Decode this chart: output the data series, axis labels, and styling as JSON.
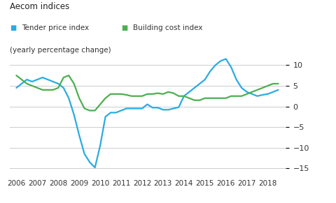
{
  "title": "Aecom indices",
  "legend_line1": "Tender price index",
  "legend_line2": "Building cost index",
  "subtitle": "(yearly percentage change)",
  "legend_colors": [
    "#29ABE2",
    "#4CAF50"
  ],
  "background_color": "#FFFFFF",
  "grid_color": "#CCCCCC",
  "ylim": [
    -16.5,
    12
  ],
  "yticks": [
    -15,
    -10,
    -5,
    0,
    5,
    10
  ],
  "xlim": [
    2005.7,
    2018.85
  ],
  "xticks": [
    2006,
    2007,
    2008,
    2009,
    2010,
    2011,
    2012,
    2013,
    2014,
    2015,
    2016,
    2017,
    2018
  ],
  "tender_price_index": {
    "x": [
      2006.0,
      2006.25,
      2006.5,
      2006.75,
      2007.0,
      2007.25,
      2007.5,
      2007.75,
      2008.0,
      2008.25,
      2008.5,
      2008.75,
      2009.0,
      2009.25,
      2009.5,
      2009.75,
      2010.0,
      2010.25,
      2010.5,
      2010.75,
      2011.0,
      2011.25,
      2011.5,
      2011.75,
      2012.0,
      2012.25,
      2012.5,
      2012.75,
      2013.0,
      2013.25,
      2013.5,
      2013.75,
      2014.0,
      2014.25,
      2014.5,
      2014.75,
      2015.0,
      2015.25,
      2015.5,
      2015.75,
      2016.0,
      2016.25,
      2016.5,
      2016.75,
      2017.0,
      2017.25,
      2017.5,
      2017.75,
      2018.0,
      2018.25,
      2018.5
    ],
    "y": [
      4.5,
      5.5,
      6.5,
      6.0,
      6.5,
      7.0,
      6.5,
      6.0,
      5.5,
      4.5,
      2.0,
      -2.0,
      -7.0,
      -11.5,
      -13.5,
      -14.8,
      -9.5,
      -2.5,
      -1.5,
      -1.5,
      -1.0,
      -0.5,
      -0.5,
      -0.5,
      -0.5,
      0.5,
      -0.3,
      -0.3,
      -0.8,
      -0.8,
      -0.5,
      -0.2,
      2.5,
      3.5,
      4.5,
      5.5,
      6.5,
      8.5,
      10.0,
      11.0,
      11.5,
      9.5,
      6.5,
      4.5,
      3.5,
      3.0,
      2.5,
      2.8,
      3.0,
      3.5,
      4.0
    ]
  },
  "building_cost_index": {
    "x": [
      2006.0,
      2006.25,
      2006.5,
      2006.75,
      2007.0,
      2007.25,
      2007.5,
      2007.75,
      2008.0,
      2008.25,
      2008.5,
      2008.75,
      2009.0,
      2009.25,
      2009.5,
      2009.75,
      2010.0,
      2010.25,
      2010.5,
      2010.75,
      2011.0,
      2011.25,
      2011.5,
      2011.75,
      2012.0,
      2012.25,
      2012.5,
      2012.75,
      2013.0,
      2013.25,
      2013.5,
      2013.75,
      2014.0,
      2014.25,
      2014.5,
      2014.75,
      2015.0,
      2015.25,
      2015.5,
      2015.75,
      2016.0,
      2016.25,
      2016.5,
      2016.75,
      2017.0,
      2017.25,
      2017.5,
      2017.75,
      2018.0,
      2018.25,
      2018.5
    ],
    "y": [
      7.5,
      6.5,
      5.5,
      5.0,
      4.5,
      4.0,
      4.0,
      4.0,
      4.5,
      7.0,
      7.5,
      5.5,
      2.0,
      -0.5,
      -1.0,
      -1.0,
      0.5,
      2.0,
      3.0,
      3.0,
      3.0,
      2.8,
      2.5,
      2.5,
      2.5,
      3.0,
      3.0,
      3.2,
      3.0,
      3.5,
      3.2,
      2.5,
      2.5,
      2.0,
      1.5,
      1.5,
      2.0,
      2.0,
      2.0,
      2.0,
      2.0,
      2.5,
      2.5,
      2.5,
      3.0,
      3.5,
      4.0,
      4.5,
      5.0,
      5.5,
      5.5
    ]
  }
}
